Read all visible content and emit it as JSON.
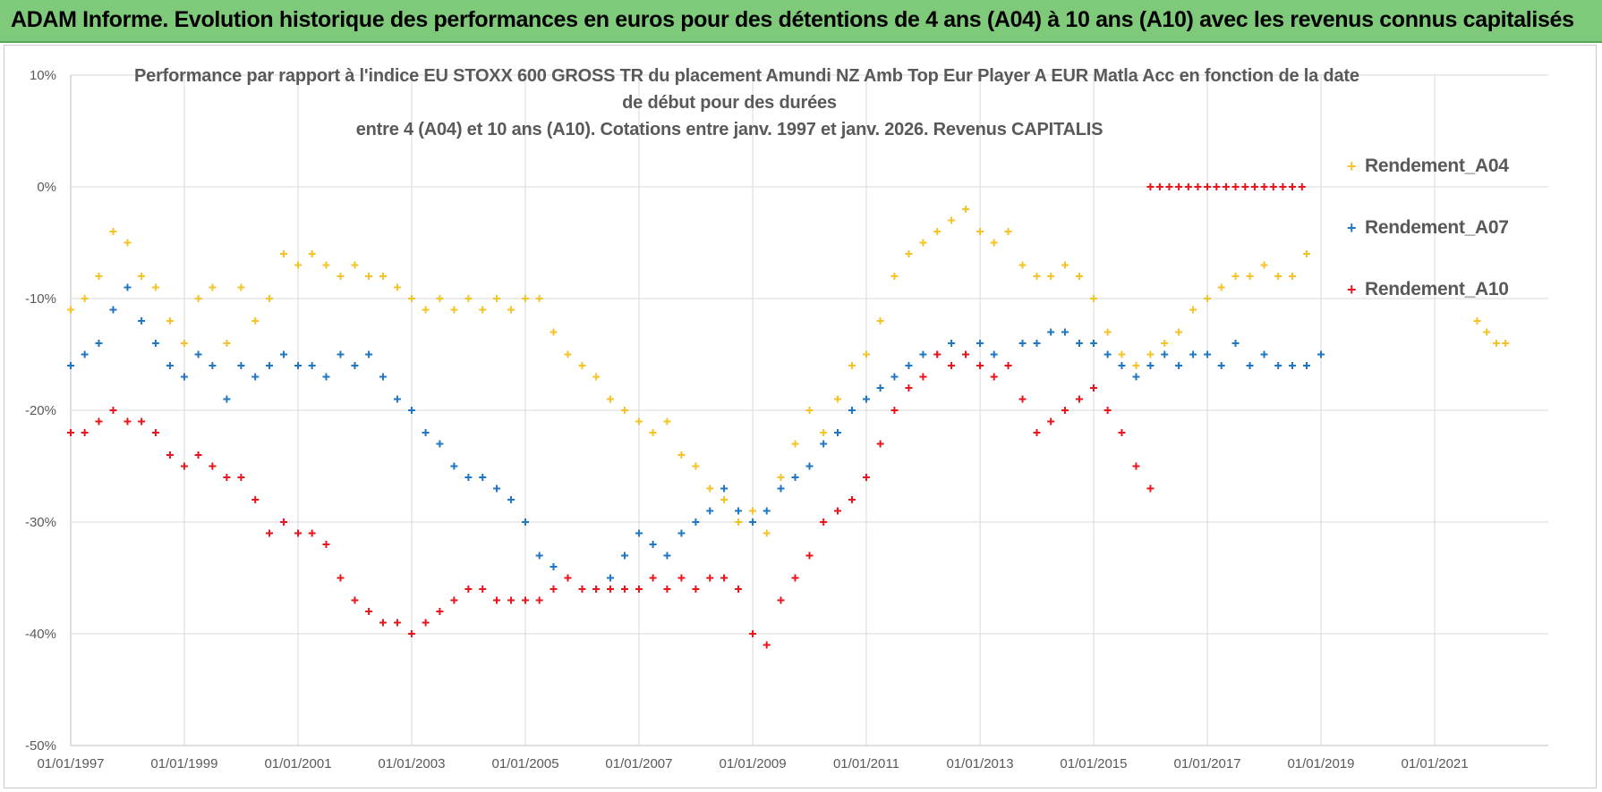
{
  "banner": {
    "title": "ADAM Informe. Evolution historique des performances en euros pour des détentions de 4 ans (A04) à 10 ans (A10) avec les revenus connus capitalisés"
  },
  "colors": {
    "banner_bg": "#7fc97a",
    "series_A04": "#f5c325",
    "series_A07": "#1f77c4",
    "series_A10": "#e8161c",
    "grid": "#d9d9d9",
    "text": "#595959"
  },
  "chart_data": {
    "type": "scatter",
    "title_lines": [
      "Performance par rapport à l'indice EU STOXX 600 GROSS TR  du placement Amundi NZ Amb Top Eur Player A EUR Matla Acc en fonction de la date",
      "de début pour des durées",
      "entre 4 (A04) et 10 ans (A10). Cotations entre janv. 1997 et janv. 2026. Revenus CAPITALIS"
    ],
    "xlabel": "",
    "ylabel": "",
    "x_ticks": [
      "01/01/1997",
      "01/01/1999",
      "01/01/2001",
      "01/01/2003",
      "01/01/2005",
      "01/01/2007",
      "01/01/2009",
      "01/01/2011",
      "01/01/2013",
      "01/01/2015",
      "01/01/2017",
      "01/01/2019",
      "01/01/2021"
    ],
    "xlim": [
      "1997-01-01",
      "2023-01-01"
    ],
    "y_ticks": [
      "10%",
      "0%",
      "-10%",
      "-20%",
      "-30%",
      "-40%",
      "-50%"
    ],
    "ylim": [
      -50,
      10
    ],
    "grid": "horizontal and vertical",
    "legend_position": "right",
    "marker": "plus",
    "series": [
      {
        "name": "Rendement_A04",
        "color": "#f5c325",
        "x": [
          "1997-01-01",
          "1997-04-01",
          "1997-07-01",
          "1997-10-01",
          "1998-01-01",
          "1998-04-01",
          "1998-07-01",
          "1998-10-01",
          "1999-01-01",
          "1999-04-01",
          "1999-07-01",
          "1999-10-01",
          "2000-01-01",
          "2000-04-01",
          "2000-07-01",
          "2000-10-01",
          "2001-01-01",
          "2001-04-01",
          "2001-07-01",
          "2001-10-01",
          "2002-01-01",
          "2002-04-01",
          "2002-07-01",
          "2002-10-01",
          "2003-01-01",
          "2003-04-01",
          "2003-07-01",
          "2003-10-01",
          "2004-01-01",
          "2004-04-01",
          "2004-07-01",
          "2004-10-01",
          "2005-01-01",
          "2005-04-01",
          "2005-07-01",
          "2005-10-01",
          "2006-01-01",
          "2006-04-01",
          "2006-07-01",
          "2006-10-01",
          "2007-01-01",
          "2007-04-01",
          "2007-07-01",
          "2007-10-01",
          "2008-01-01",
          "2008-04-01",
          "2008-07-01",
          "2008-10-01",
          "2009-01-01",
          "2009-04-01",
          "2009-07-01",
          "2009-10-01",
          "2010-01-01",
          "2010-04-01",
          "2010-07-01",
          "2010-10-01",
          "2011-01-01",
          "2011-04-01",
          "2011-07-01",
          "2011-10-01",
          "2012-01-01",
          "2012-04-01",
          "2012-07-01",
          "2012-10-01",
          "2013-01-01",
          "2013-04-01",
          "2013-07-01",
          "2013-10-01",
          "2014-01-01",
          "2014-04-01",
          "2014-07-01",
          "2014-10-01",
          "2015-01-01",
          "2015-04-01",
          "2015-07-01",
          "2015-10-01",
          "2016-01-01",
          "2016-04-01",
          "2016-07-01",
          "2016-10-01",
          "2017-01-01",
          "2017-04-01",
          "2017-07-01",
          "2017-10-01",
          "2018-01-01",
          "2018-04-01",
          "2018-07-01",
          "2018-10-01",
          "2021-10-01",
          "2021-12-01",
          "2022-02-01",
          "2022-04-01"
        ],
        "values": [
          -11,
          -10,
          -8,
          -4,
          -5,
          -8,
          -9,
          -12,
          -14,
          -10,
          -9,
          -14,
          -9,
          -12,
          -10,
          -6,
          -7,
          -6,
          -7,
          -8,
          -7,
          -8,
          -8,
          -9,
          -10,
          -11,
          -10,
          -11,
          -10,
          -11,
          -10,
          -11,
          -10,
          -10,
          -13,
          -15,
          -16,
          -17,
          -19,
          -20,
          -21,
          -22,
          -21,
          -24,
          -25,
          -27,
          -28,
          -30,
          -29,
          -31,
          -26,
          -23,
          -20,
          -22,
          -19,
          -16,
          -15,
          -12,
          -8,
          -6,
          -5,
          -4,
          -3,
          -2,
          -4,
          -5,
          -4,
          -7,
          -8,
          -8,
          -7,
          -8,
          -10,
          -13,
          -15,
          -16,
          -15,
          -14,
          -13,
          -11,
          -10,
          -9,
          -8,
          -8,
          -7,
          -8,
          -8,
          -6,
          -12,
          -13,
          -14,
          -14
        ]
      },
      {
        "name": "Rendement_A07",
        "color": "#1f77c4",
        "x": [
          "1997-01-01",
          "1997-04-01",
          "1997-07-01",
          "1997-10-01",
          "1998-01-01",
          "1998-04-01",
          "1998-07-01",
          "1998-10-01",
          "1999-01-01",
          "1999-04-01",
          "1999-07-01",
          "1999-10-01",
          "2000-01-01",
          "2000-04-01",
          "2000-07-01",
          "2000-10-01",
          "2001-01-01",
          "2001-04-01",
          "2001-07-01",
          "2001-10-01",
          "2002-01-01",
          "2002-04-01",
          "2002-07-01",
          "2002-10-01",
          "2003-01-01",
          "2003-04-01",
          "2003-07-01",
          "2003-10-01",
          "2004-01-01",
          "2004-04-01",
          "2004-07-01",
          "2004-10-01",
          "2005-01-01",
          "2005-04-01",
          "2005-07-01",
          "2005-10-01",
          "2006-01-01",
          "2006-04-01",
          "2006-07-01",
          "2006-10-01",
          "2007-01-01",
          "2007-04-01",
          "2007-07-01",
          "2007-10-01",
          "2008-01-01",
          "2008-04-01",
          "2008-07-01",
          "2008-10-01",
          "2009-01-01",
          "2009-04-01",
          "2009-07-01",
          "2009-10-01",
          "2010-01-01",
          "2010-04-01",
          "2010-07-01",
          "2010-10-01",
          "2011-01-01",
          "2011-04-01",
          "2011-07-01",
          "2011-10-01",
          "2012-01-01",
          "2012-04-01",
          "2012-07-01",
          "2012-10-01",
          "2013-01-01",
          "2013-04-01",
          "2013-07-01",
          "2013-10-01",
          "2014-01-01",
          "2014-04-01",
          "2014-07-01",
          "2014-10-01",
          "2015-01-01",
          "2015-04-01",
          "2015-07-01",
          "2015-10-01",
          "2016-01-01",
          "2016-04-01",
          "2016-07-01",
          "2016-10-01",
          "2017-01-01",
          "2017-04-01",
          "2017-07-01",
          "2017-10-01",
          "2018-01-01",
          "2018-04-01",
          "2018-07-01",
          "2018-10-01",
          "2019-01-01"
        ],
        "values": [
          -16,
          -15,
          -14,
          -11,
          -9,
          -12,
          -14,
          -16,
          -17,
          -15,
          -16,
          -19,
          -16,
          -17,
          -16,
          -15,
          -16,
          -16,
          -17,
          -15,
          -16,
          -15,
          -17,
          -19,
          -20,
          -22,
          -23,
          -25,
          -26,
          -26,
          -27,
          -28,
          -30,
          -33,
          -34,
          -35,
          -36,
          -36,
          -35,
          -33,
          -31,
          -32,
          -33,
          -31,
          -30,
          -29,
          -27,
          -29,
          -30,
          -29,
          -27,
          -26,
          -25,
          -23,
          -22,
          -20,
          -19,
          -18,
          -17,
          -16,
          -15,
          -15,
          -14,
          -15,
          -14,
          -15,
          -16,
          -14,
          -14,
          -13,
          -13,
          -14,
          -14,
          -15,
          -16,
          -17,
          -16,
          -15,
          -16,
          -15,
          -15,
          -16,
          -14,
          -16,
          -15,
          -16,
          -16,
          -16,
          -15
        ]
      },
      {
        "name": "Rendement_A10",
        "color": "#e8161c",
        "x": [
          "1997-01-01",
          "1997-04-01",
          "1997-07-01",
          "1997-10-01",
          "1998-01-01",
          "1998-04-01",
          "1998-07-01",
          "1998-10-01",
          "1999-01-01",
          "1999-04-01",
          "1999-07-01",
          "1999-10-01",
          "2000-01-01",
          "2000-04-01",
          "2000-07-01",
          "2000-10-01",
          "2001-01-01",
          "2001-04-01",
          "2001-07-01",
          "2001-10-01",
          "2002-01-01",
          "2002-04-01",
          "2002-07-01",
          "2002-10-01",
          "2003-01-01",
          "2003-04-01",
          "2003-07-01",
          "2003-10-01",
          "2004-01-01",
          "2004-04-01",
          "2004-07-01",
          "2004-10-01",
          "2005-01-01",
          "2005-04-01",
          "2005-07-01",
          "2005-10-01",
          "2006-01-01",
          "2006-04-01",
          "2006-07-01",
          "2006-10-01",
          "2007-01-01",
          "2007-04-01",
          "2007-07-01",
          "2007-10-01",
          "2008-01-01",
          "2008-04-01",
          "2008-07-01",
          "2008-10-01",
          "2009-01-01",
          "2009-04-01",
          "2009-07-01",
          "2009-10-01",
          "2010-01-01",
          "2010-04-01",
          "2010-07-01",
          "2010-10-01",
          "2011-01-01",
          "2011-04-01",
          "2011-07-01",
          "2011-10-01",
          "2012-01-01",
          "2012-04-01",
          "2012-07-01",
          "2012-10-01",
          "2013-01-01",
          "2013-04-01",
          "2013-07-01",
          "2013-10-01",
          "2014-01-01",
          "2014-04-01",
          "2014-07-01",
          "2014-10-01",
          "2015-01-01",
          "2015-04-01",
          "2015-07-01",
          "2015-10-01",
          "2016-01-01"
        ],
        "values": [
          -22,
          -22,
          -21,
          -20,
          -21,
          -21,
          -22,
          -24,
          -25,
          -24,
          -25,
          -26,
          -26,
          -28,
          -31,
          -30,
          -31,
          -31,
          -32,
          -35,
          -37,
          -38,
          -39,
          -39,
          -40,
          -39,
          -38,
          -37,
          -36,
          -36,
          -37,
          -37,
          -37,
          -37,
          -36,
          -35,
          -36,
          -36,
          -36,
          -36,
          -36,
          -35,
          -36,
          -35,
          -36,
          -35,
          -35,
          -36,
          -40,
          -41,
          -37,
          -35,
          -33,
          -30,
          -29,
          -28,
          -26,
          -23,
          -20,
          -18,
          -17,
          -15,
          -16,
          -15,
          -16,
          -17,
          -16,
          -19,
          -22,
          -21,
          -20,
          -19,
          -18,
          -20,
          -22,
          -25,
          -27
        ]
      },
      {
        "name": "",
        "color": "#e8161c",
        "x": [
          "2016-01-01",
          "2016-03-01",
          "2016-05-01",
          "2016-07-01",
          "2016-09-01",
          "2016-11-01",
          "2017-01-01",
          "2017-03-01",
          "2017-05-01",
          "2017-07-01",
          "2017-09-01",
          "2017-11-01",
          "2018-01-01",
          "2018-03-01",
          "2018-05-01",
          "2018-07-01",
          "2018-09-01"
        ],
        "values": [
          0,
          0,
          0,
          0,
          0,
          0,
          0,
          0,
          0,
          0,
          0,
          0,
          0,
          0,
          0,
          0,
          0
        ]
      }
    ]
  },
  "legend": [
    {
      "label": "Rendement_A04",
      "symbol": "+",
      "color": "#f5c325"
    },
    {
      "label": "Rendement_A07",
      "symbol": "+",
      "color": "#1f77c4"
    },
    {
      "label": "Rendement_A10",
      "symbol": "+",
      "color": "#e8161c"
    }
  ]
}
